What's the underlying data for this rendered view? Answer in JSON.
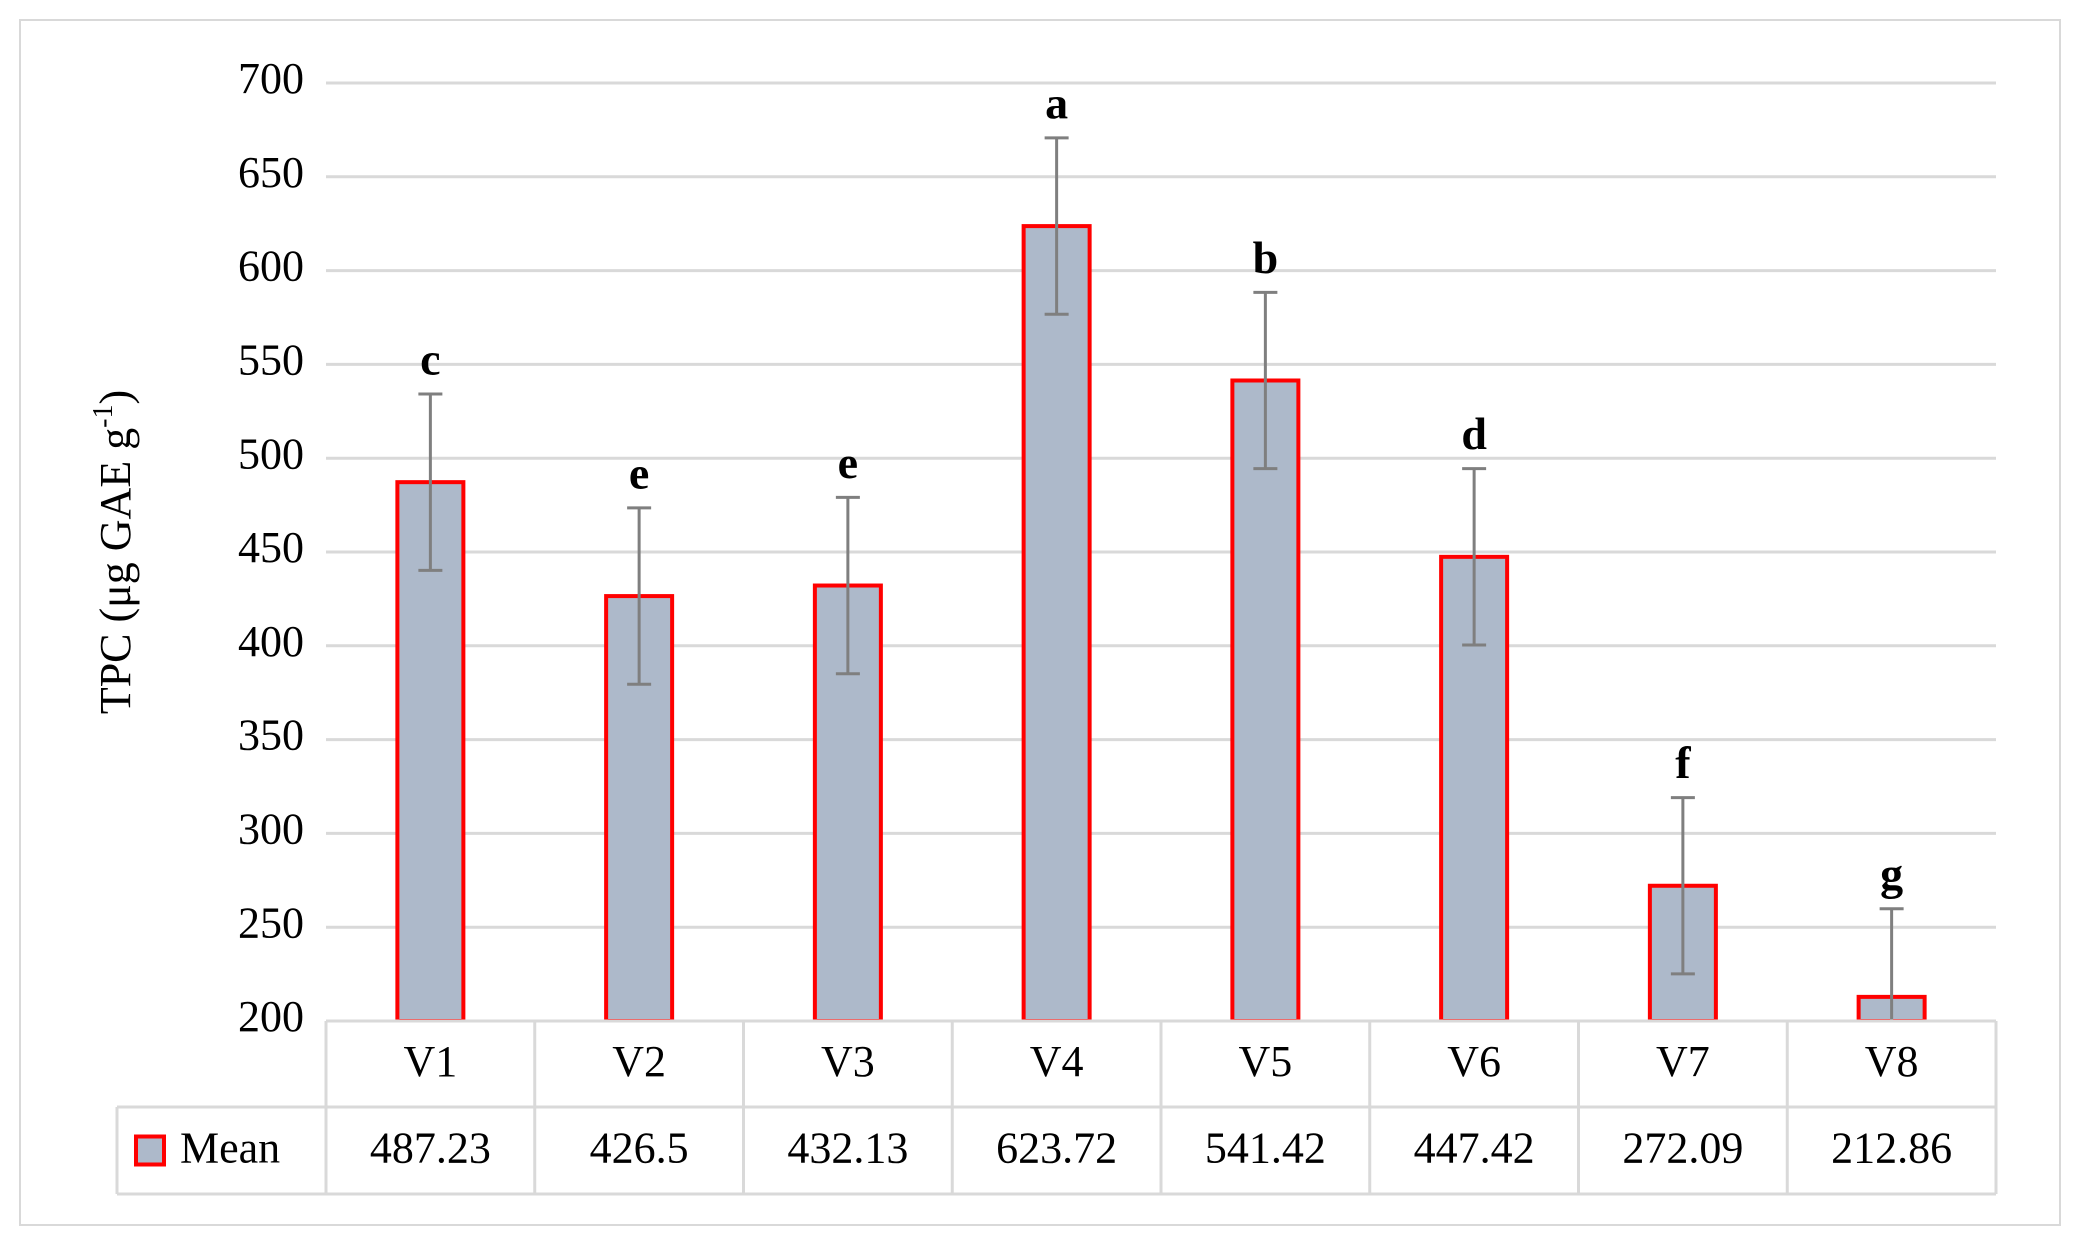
{
  "chart_data": {
    "type": "bar",
    "y_label": [
      "TPC (μg GAE g",
      "-1",
      ")"
    ],
    "categories": [
      "V1",
      "V2",
      "V3",
      "V4",
      "V5",
      "V6",
      "V7",
      "V8"
    ],
    "series": [
      {
        "name": "Mean",
        "color": "#adb9ca",
        "edge_color": "#ff0000",
        "values": [
          487.23,
          426.5,
          432.13,
          623.72,
          541.42,
          447.42,
          272.09,
          212.86
        ],
        "errors": [
          47,
          47,
          47,
          47,
          47,
          47,
          47,
          47
        ]
      }
    ],
    "annotations": [
      "c",
      "e",
      "e",
      "a",
      "b",
      "d",
      "f",
      "g"
    ],
    "ylim": [
      200,
      700
    ],
    "yticks": [
      200,
      250,
      300,
      350,
      400,
      450,
      500,
      550,
      600,
      650,
      700
    ],
    "grid": true,
    "data_table": true
  }
}
